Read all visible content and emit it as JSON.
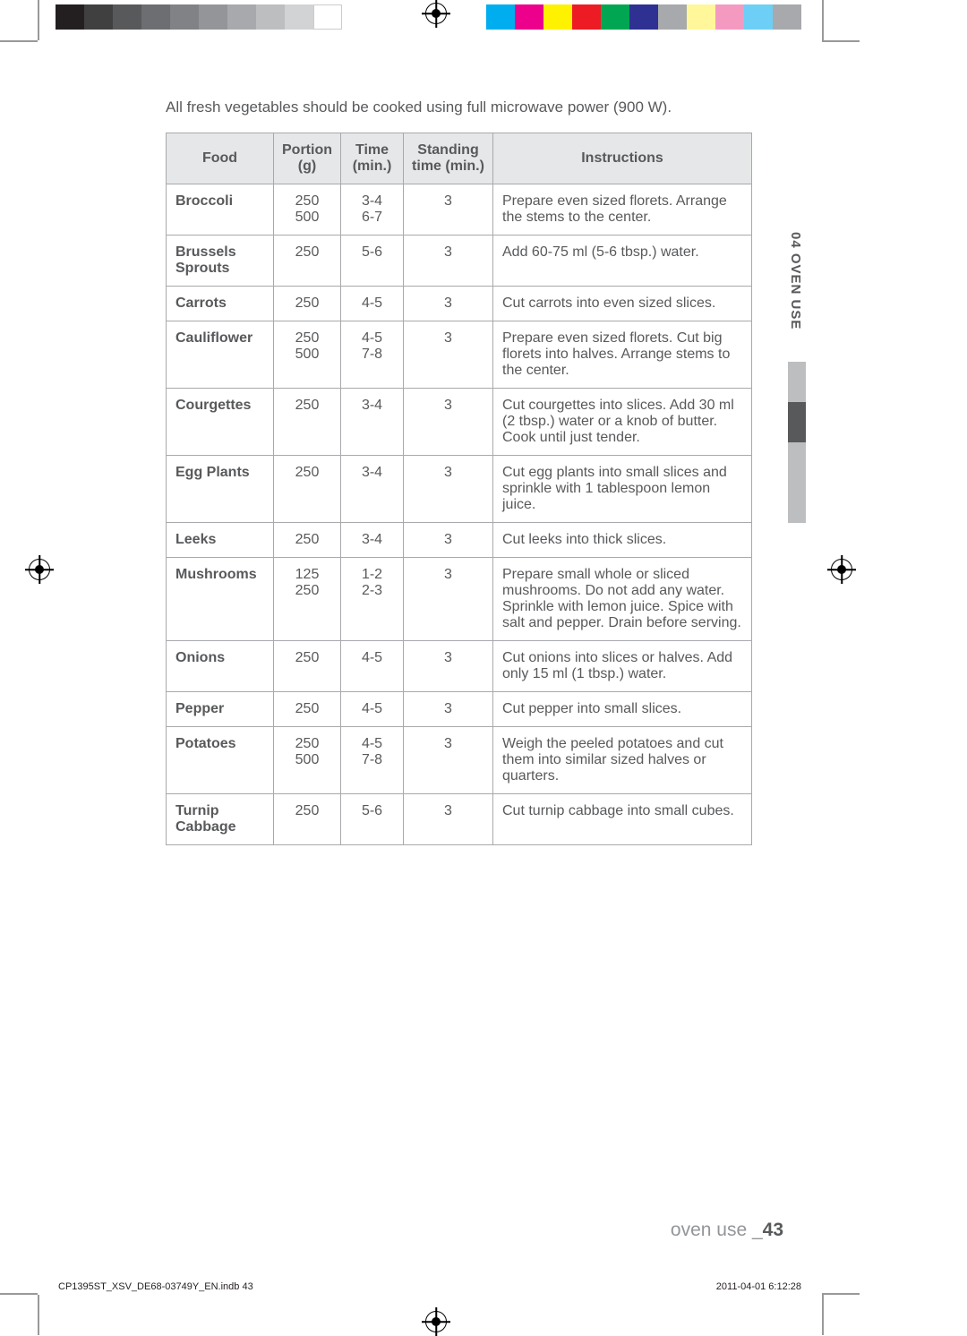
{
  "colorbar_left": [
    "#231f20",
    "#404041",
    "#58595b",
    "#6d6e71",
    "#808285",
    "#939598",
    "#a7a9ac",
    "#bcbec0",
    "#d1d3d4",
    "#ffffff"
  ],
  "colorbar_right": [
    "#00aeef",
    "#ec008c",
    "#fff200",
    "#ed1c24",
    "#00a651",
    "#2e3192",
    "#a7a9ac",
    "#fff799",
    "#f49ac1",
    "#6dcff6",
    "#a7a9ac"
  ],
  "intro": "All fresh vegetables should be cooked using full microwave power (900 W).",
  "headers": {
    "food": "Food",
    "portion": "Portion (g)",
    "time": "Time (min.)",
    "standing": "Standing time (min.)",
    "instructions": "Instructions"
  },
  "rows": [
    {
      "food": "Broccoli",
      "portion": "250\n500",
      "time": "3-4\n6-7",
      "standing": "3",
      "instructions": "Prepare even sized florets. Arrange the stems to the center."
    },
    {
      "food": "Brussels Sprouts",
      "portion": "250",
      "time": "5-6",
      "standing": "3",
      "instructions": "Add 60-75 ml (5-6 tbsp.) water."
    },
    {
      "food": "Carrots",
      "portion": "250",
      "time": "4-5",
      "standing": "3",
      "instructions": "Cut carrots into even sized slices."
    },
    {
      "food": "Cauliflower",
      "portion": "250\n500",
      "time": "4-5\n7-8",
      "standing": "3",
      "instructions": "Prepare even sized florets. Cut big florets into halves. Arrange stems to the center."
    },
    {
      "food": "Courgettes",
      "portion": "250",
      "time": "3-4",
      "standing": "3",
      "instructions": "Cut courgettes into slices. Add 30 ml (2 tbsp.) water or a knob of butter. Cook until just tender."
    },
    {
      "food": "Egg Plants",
      "portion": "250",
      "time": "3-4",
      "standing": "3",
      "instructions": "Cut egg plants into small slices and sprinkle with 1 tablespoon lemon juice."
    },
    {
      "food": "Leeks",
      "portion": "250",
      "time": "3-4",
      "standing": "3",
      "instructions": "Cut leeks into thick slices."
    },
    {
      "food": "Mushrooms",
      "portion": "125\n250",
      "time": "1-2\n2-3",
      "standing": "3",
      "instructions": "Prepare small whole or sliced mushrooms. Do not add any water. Sprinkle with lemon juice. Spice with salt and pepper. Drain before serving."
    },
    {
      "food": "Onions",
      "portion": "250",
      "time": "4-5",
      "standing": "3",
      "instructions": "Cut onions into slices or halves. Add only 15 ml (1 tbsp.) water."
    },
    {
      "food": "Pepper",
      "portion": "250",
      "time": "4-5",
      "standing": "3",
      "instructions": "Cut pepper into small slices."
    },
    {
      "food": "Potatoes",
      "portion": "250\n500",
      "time": "4-5\n7-8",
      "standing": "3",
      "instructions": "Weigh the peeled potatoes and cut them into similar sized halves or quarters."
    },
    {
      "food": "Turnip Cabbage",
      "portion": "250",
      "time": "5-6",
      "standing": "3",
      "instructions": "Cut turnip cabbage into small cubes."
    }
  ],
  "side_label": "04 OVEN USE",
  "side_bars": [
    "#bcbec0",
    "#58595b",
    "#bcbec0",
    "#bcbec0"
  ],
  "footer_text": "oven use _",
  "footer_page": "43",
  "imprint_left": "CP1395ST_XSV_DE68-03749Y_EN.indb   43",
  "imprint_right": "2011-04-01    6:12:28"
}
